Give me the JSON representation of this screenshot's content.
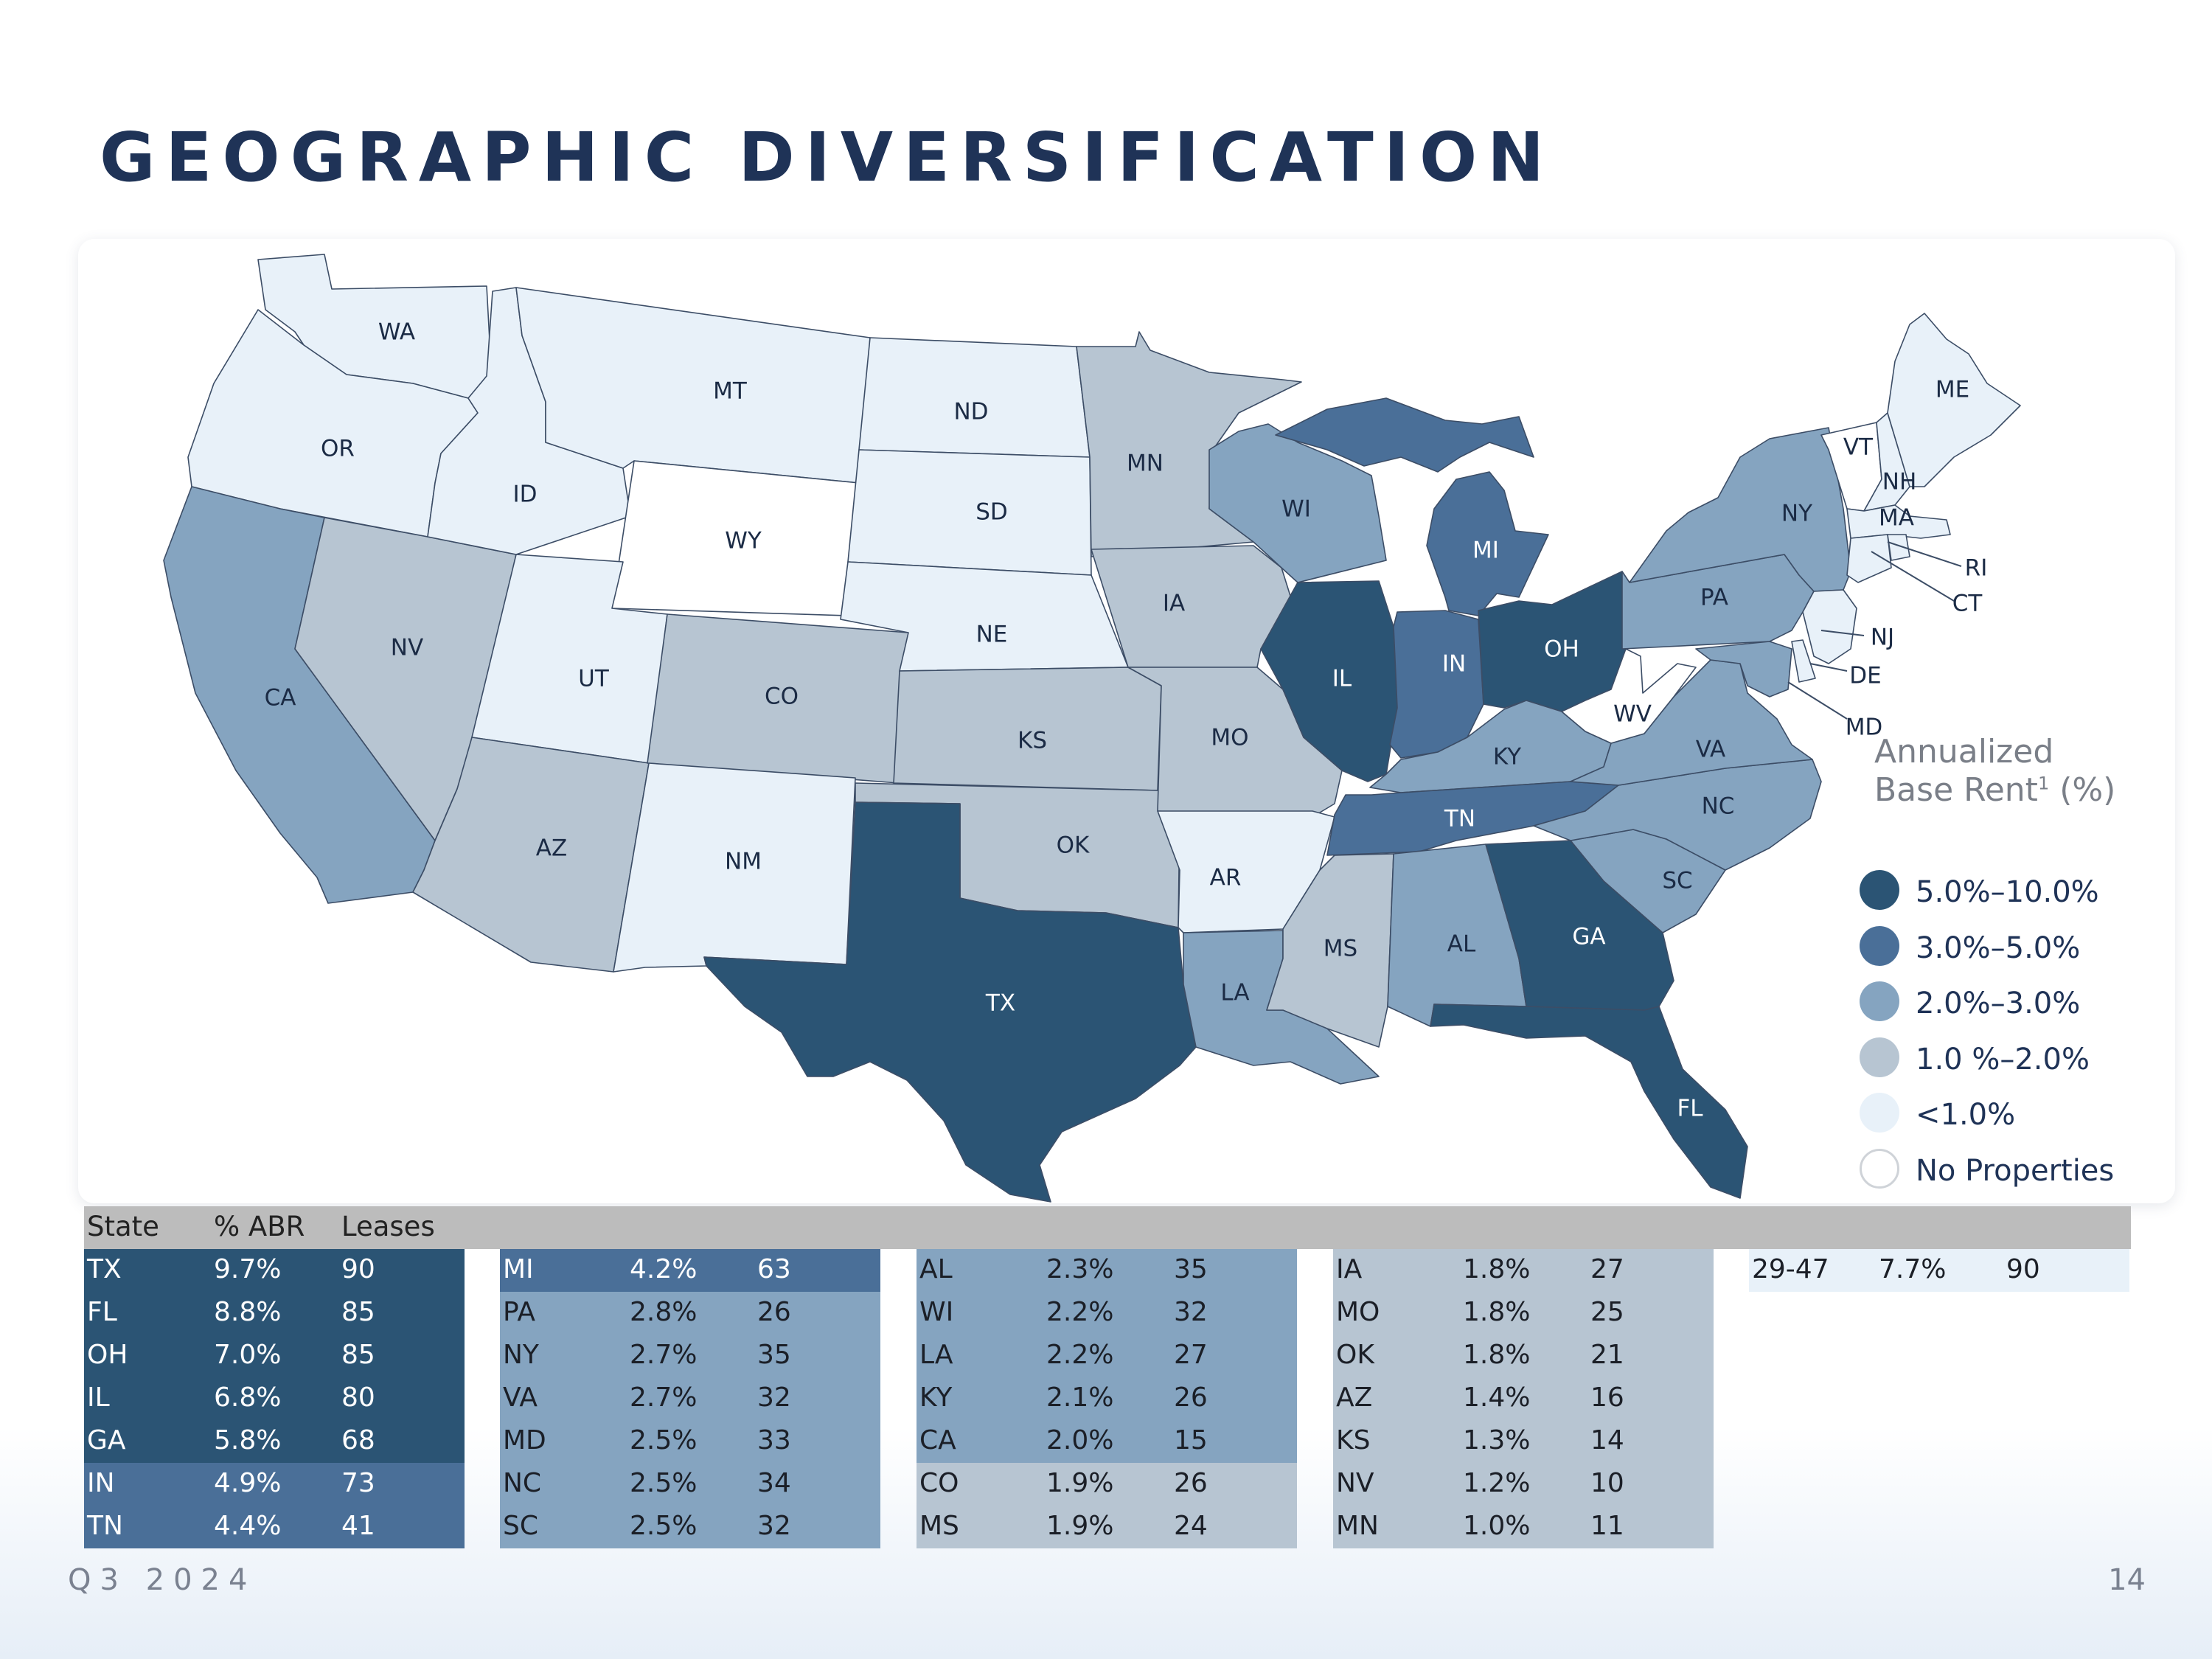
{
  "title": "GEOGRAPHIC DIVERSIFICATION",
  "footer": {
    "period": "Q3 2024",
    "page_number": "14"
  },
  "colors": {
    "tier_5_10": "#2b5474",
    "tier_3_5": "#4a6f98",
    "tier_2_3": "#85a4c0",
    "tier_1_2": "#b7c5d2",
    "tier_lt1": "#e8f1f9",
    "no_properties": "#ffffff"
  },
  "legend": {
    "title_line1": "Annualized",
    "title_line2": "Base Rent",
    "title_sup": "1",
    "title_suffix": " (%)",
    "items": [
      {
        "label": "5.0%–10.0%",
        "tier": "tier_5_10"
      },
      {
        "label": "3.0%–5.0%",
        "tier": "tier_3_5"
      },
      {
        "label": "2.0%–3.0%",
        "tier": "tier_2_3"
      },
      {
        "label": "1.0 %–2.0%",
        "tier": "tier_1_2"
      },
      {
        "label": "<1.0%",
        "tier": "tier_lt1"
      },
      {
        "label": "No Properties",
        "tier": "no_properties"
      }
    ]
  },
  "map": {
    "states": [
      {
        "abbr": "WA",
        "tier": "tier_lt1"
      },
      {
        "abbr": "OR",
        "tier": "tier_lt1"
      },
      {
        "abbr": "CA",
        "tier": "tier_2_3"
      },
      {
        "abbr": "NV",
        "tier": "tier_1_2"
      },
      {
        "abbr": "ID",
        "tier": "tier_lt1"
      },
      {
        "abbr": "MT",
        "tier": "tier_lt1"
      },
      {
        "abbr": "WY",
        "tier": "no_properties"
      },
      {
        "abbr": "UT",
        "tier": "tier_lt1"
      },
      {
        "abbr": "AZ",
        "tier": "tier_1_2"
      },
      {
        "abbr": "CO",
        "tier": "tier_1_2"
      },
      {
        "abbr": "NM",
        "tier": "tier_lt1"
      },
      {
        "abbr": "ND",
        "tier": "tier_lt1"
      },
      {
        "abbr": "SD",
        "tier": "tier_lt1"
      },
      {
        "abbr": "NE",
        "tier": "tier_lt1"
      },
      {
        "abbr": "KS",
        "tier": "tier_1_2"
      },
      {
        "abbr": "OK",
        "tier": "tier_1_2"
      },
      {
        "abbr": "TX",
        "tier": "tier_5_10"
      },
      {
        "abbr": "MN",
        "tier": "tier_1_2"
      },
      {
        "abbr": "IA",
        "tier": "tier_1_2"
      },
      {
        "abbr": "MO",
        "tier": "tier_1_2"
      },
      {
        "abbr": "AR",
        "tier": "tier_lt1"
      },
      {
        "abbr": "LA",
        "tier": "tier_2_3"
      },
      {
        "abbr": "WI",
        "tier": "tier_2_3"
      },
      {
        "abbr": "IL",
        "tier": "tier_5_10"
      },
      {
        "abbr": "MI",
        "tier": "tier_3_5"
      },
      {
        "abbr": "IN",
        "tier": "tier_3_5"
      },
      {
        "abbr": "OH",
        "tier": "tier_5_10"
      },
      {
        "abbr": "KY",
        "tier": "tier_2_3"
      },
      {
        "abbr": "TN",
        "tier": "tier_3_5"
      },
      {
        "abbr": "MS",
        "tier": "tier_1_2"
      },
      {
        "abbr": "AL",
        "tier": "tier_2_3"
      },
      {
        "abbr": "GA",
        "tier": "tier_5_10"
      },
      {
        "abbr": "FL",
        "tier": "tier_5_10"
      },
      {
        "abbr": "SC",
        "tier": "tier_2_3"
      },
      {
        "abbr": "NC",
        "tier": "tier_2_3"
      },
      {
        "abbr": "VA",
        "tier": "tier_2_3"
      },
      {
        "abbr": "WV",
        "tier": "no_properties"
      },
      {
        "abbr": "PA",
        "tier": "tier_2_3"
      },
      {
        "abbr": "NY",
        "tier": "tier_2_3"
      },
      {
        "abbr": "MD",
        "tier": "tier_2_3"
      },
      {
        "abbr": "DE",
        "tier": "tier_lt1"
      },
      {
        "abbr": "NJ",
        "tier": "tier_lt1"
      },
      {
        "abbr": "VT",
        "tier": "no_properties"
      },
      {
        "abbr": "NH",
        "tier": "tier_lt1"
      },
      {
        "abbr": "ME",
        "tier": "tier_lt1"
      },
      {
        "abbr": "MA",
        "tier": "tier_lt1"
      },
      {
        "abbr": "CT",
        "tier": "tier_lt1"
      },
      {
        "abbr": "RI",
        "tier": "tier_lt1"
      }
    ]
  },
  "table": {
    "headers": {
      "state": "State",
      "abr": "% ABR",
      "leases": "Leases"
    },
    "columns": [
      [
        {
          "state": "TX",
          "abr": "9.7%",
          "leases": "90",
          "tier": "tier_5_10"
        },
        {
          "state": "FL",
          "abr": "8.8%",
          "leases": "85",
          "tier": "tier_5_10"
        },
        {
          "state": "OH",
          "abr": "7.0%",
          "leases": "85",
          "tier": "tier_5_10"
        },
        {
          "state": "IL",
          "abr": "6.8%",
          "leases": "80",
          "tier": "tier_5_10"
        },
        {
          "state": "GA",
          "abr": "5.8%",
          "leases": "68",
          "tier": "tier_5_10"
        },
        {
          "state": "IN",
          "abr": "4.9%",
          "leases": "73",
          "tier": "tier_3_5"
        },
        {
          "state": "TN",
          "abr": "4.4%",
          "leases": "41",
          "tier": "tier_3_5"
        }
      ],
      [
        {
          "state": "MI",
          "abr": "4.2%",
          "leases": "63",
          "tier": "tier_3_5"
        },
        {
          "state": "PA",
          "abr": "2.8%",
          "leases": "26",
          "tier": "tier_2_3"
        },
        {
          "state": "NY",
          "abr": "2.7%",
          "leases": "35",
          "tier": "tier_2_3"
        },
        {
          "state": "VA",
          "abr": "2.7%",
          "leases": "32",
          "tier": "tier_2_3"
        },
        {
          "state": "MD",
          "abr": "2.5%",
          "leases": "33",
          "tier": "tier_2_3"
        },
        {
          "state": "NC",
          "abr": "2.5%",
          "leases": "34",
          "tier": "tier_2_3"
        },
        {
          "state": "SC",
          "abr": "2.5%",
          "leases": "32",
          "tier": "tier_2_3"
        }
      ],
      [
        {
          "state": "AL",
          "abr": "2.3%",
          "leases": "35",
          "tier": "tier_2_3"
        },
        {
          "state": "WI",
          "abr": "2.2%",
          "leases": "32",
          "tier": "tier_2_3"
        },
        {
          "state": "LA",
          "abr": "2.2%",
          "leases": "27",
          "tier": "tier_2_3"
        },
        {
          "state": "KY",
          "abr": "2.1%",
          "leases": "26",
          "tier": "tier_2_3"
        },
        {
          "state": "CA",
          "abr": "2.0%",
          "leases": "15",
          "tier": "tier_2_3"
        },
        {
          "state": "CO",
          "abr": "1.9%",
          "leases": "26",
          "tier": "tier_1_2"
        },
        {
          "state": "MS",
          "abr": "1.9%",
          "leases": "24",
          "tier": "tier_1_2"
        }
      ],
      [
        {
          "state": "IA",
          "abr": "1.8%",
          "leases": "27",
          "tier": "tier_1_2"
        },
        {
          "state": "MO",
          "abr": "1.8%",
          "leases": "25",
          "tier": "tier_1_2"
        },
        {
          "state": "OK",
          "abr": "1.8%",
          "leases": "21",
          "tier": "tier_1_2"
        },
        {
          "state": "AZ",
          "abr": "1.4%",
          "leases": "16",
          "tier": "tier_1_2"
        },
        {
          "state": "KS",
          "abr": "1.3%",
          "leases": "14",
          "tier": "tier_1_2"
        },
        {
          "state": "NV",
          "abr": "1.2%",
          "leases": "10",
          "tier": "tier_1_2"
        },
        {
          "state": "MN",
          "abr": "1.0%",
          "leases": "11",
          "tier": "tier_1_2"
        }
      ],
      [
        {
          "state": "29-47",
          "abr": "7.7%",
          "leases": "90",
          "tier": "tier_lt1"
        }
      ]
    ]
  }
}
